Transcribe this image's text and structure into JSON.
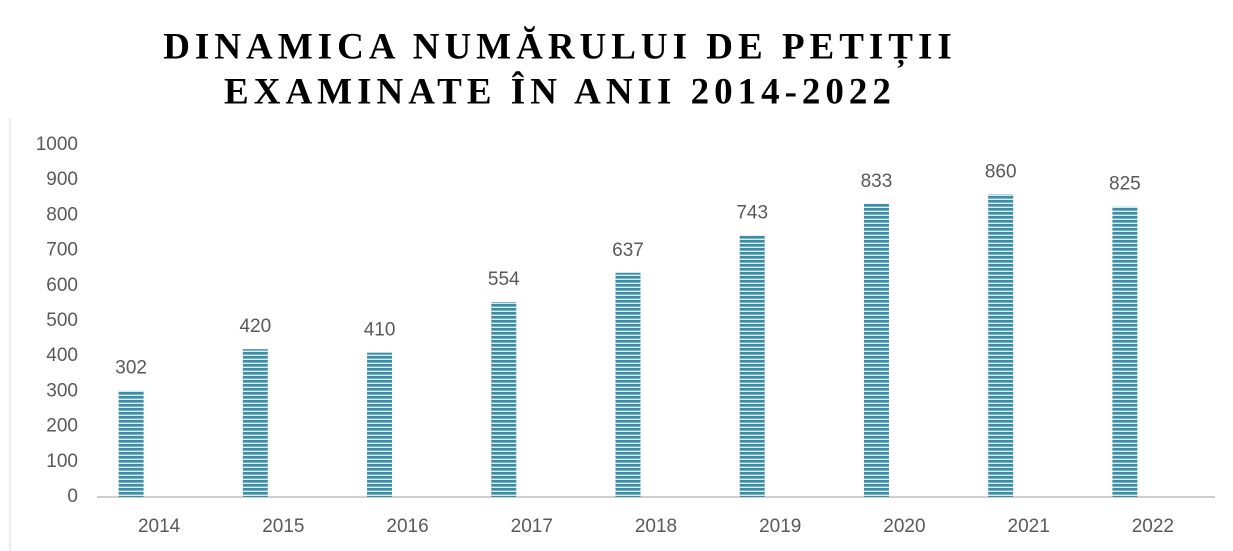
{
  "chart_data": {
    "type": "bar",
    "title": [
      "DINAMICA NUMĂRULUI DE PETIȚII",
      "EXAMINATE ÎN ANII 2014-2022"
    ],
    "categories": [
      "2014",
      "2015",
      "2016",
      "2017",
      "2018",
      "2019",
      "2020",
      "2021",
      "2022"
    ],
    "values": [
      302,
      420,
      410,
      554,
      637,
      743,
      833,
      860,
      825
    ],
    "color": "#3d8ea5",
    "ylim": [
      0,
      1000
    ],
    "yticks": [
      0,
      100,
      200,
      300,
      400,
      500,
      600,
      700,
      800,
      900,
      1000
    ],
    "grid": false
  }
}
